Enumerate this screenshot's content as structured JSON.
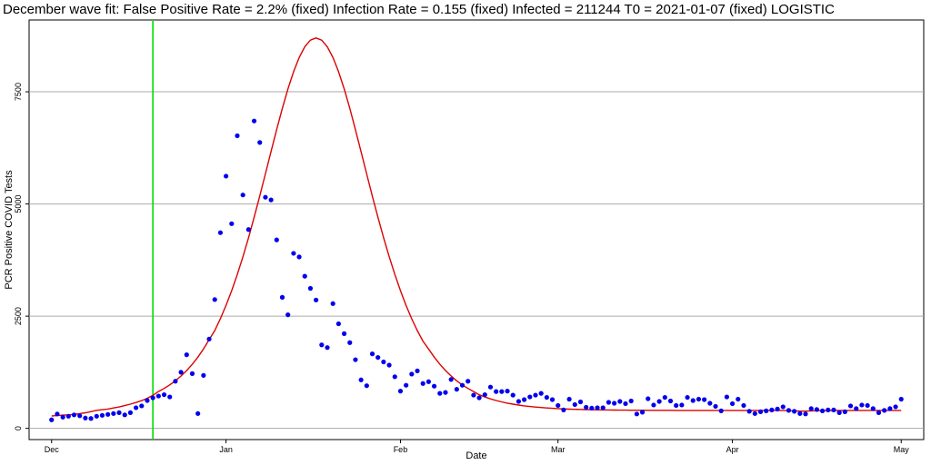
{
  "chart_data": {
    "type": "scatter",
    "title": "December wave fit: False Positive Rate = 2.2% (fixed) Infection Rate = 0.155 (fixed) Infected = 211244 T0 = 2021-01-07 (fixed) LOGISTIC",
    "xlabel": "Date",
    "ylabel": "PCR Positive COVID Tests",
    "x_tick_labels": [
      "Dec",
      "Jan",
      "Feb",
      "Mar",
      "Apr",
      "May"
    ],
    "x_tick_dates": [
      "2020-12-01",
      "2021-01-01",
      "2021-02-01",
      "2021-03-01",
      "2021-04-01",
      "2021-05-01"
    ],
    "y_ticks": [
      0,
      2500,
      5000,
      7500
    ],
    "xlim": [
      "2020-11-27",
      "2021-05-05"
    ],
    "ylim": [
      -250,
      9100
    ],
    "grid": "horizontal",
    "vline_date": "2020-12-19",
    "colors": {
      "points": "#0000ee",
      "fit": "#dd0000",
      "vline": "#00dd00",
      "grid": "#aaaaaa"
    },
    "x_start": "2020-12-01",
    "series": [
      {
        "type": "scatter",
        "values": [
          190,
          320,
          250,
          270,
          300,
          280,
          230,
          220,
          270,
          290,
          310,
          330,
          350,
          300,
          350,
          460,
          500,
          620,
          680,
          720,
          750,
          700,
          1050,
          1250,
          1640,
          1220,
          330,
          1180,
          1990,
          2870,
          4360,
          5620,
          4560,
          6520,
          5200,
          4430,
          6850,
          6370,
          5150,
          5090,
          4200,
          2920,
          2530,
          3900,
          3820,
          3390,
          3120,
          2860,
          1860,
          1800,
          2780,
          2330,
          2110,
          1910,
          1530,
          1080,
          950,
          1660,
          1580,
          1480,
          1410,
          1150,
          830,
          960,
          1210,
          1280,
          1000,
          1040,
          940,
          780,
          800,
          1090,
          870,
          960,
          1050,
          740,
          680,
          750,
          920,
          820,
          820,
          830,
          740,
          600,
          640,
          700,
          740,
          780,
          690,
          640,
          510,
          410,
          650,
          530,
          590,
          470,
          450,
          460,
          460,
          580,
          560,
          600,
          550,
          610,
          320,
          360,
          660,
          520,
          600,
          690,
          610,
          510,
          520,
          690,
          620,
          650,
          640,
          560,
          490,
          390,
          700,
          550,
          650,
          510,
          380,
          330,
          370,
          390,
          410,
          430,
          480,
          400,
          380,
          330,
          320,
          440,
          420,
          390,
          410,
          410,
          350,
          370,
          500,
          440,
          520,
          510,
          440,
          350,
          400,
          440,
          480,
          650
        ]
      },
      {
        "type": "line",
        "model": "logistic",
        "peak_date": "2021-01-17",
        "peak": 8700
      }
    ]
  }
}
